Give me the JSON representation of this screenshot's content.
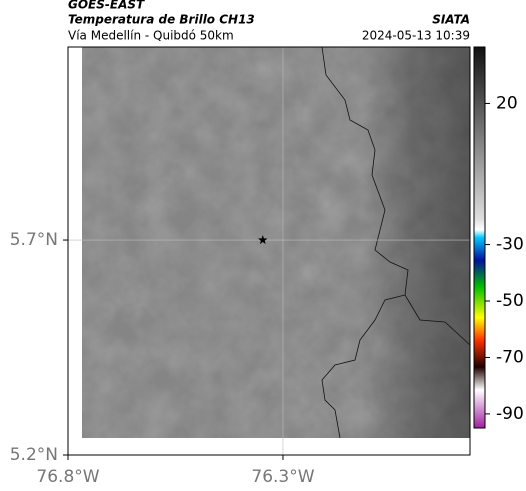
{
  "chart_data": {
    "type": "map",
    "title": "GOES-EAST",
    "subtitle": "Temperatura de Brillo CH13",
    "source": "SIATA",
    "region": "Vía Medellín - Quibdó 50km",
    "timestamp": "2024-05-13 10:39",
    "xlim": [
      -76.8,
      -75.865
    ],
    "ylim": [
      5.2,
      6.149
    ],
    "xticks": [
      {
        "value": -76.8,
        "label": "76.8°W"
      },
      {
        "value": -76.3,
        "label": "76.3°W"
      }
    ],
    "yticks": [
      {
        "value": 5.2,
        "label": "5.2°N"
      },
      {
        "value": 5.7,
        "label": "5.7°N"
      }
    ],
    "grid": true,
    "marker": {
      "lon": -76.347,
      "lat": 5.7
    },
    "colorbar": {
      "clim": [
        -95,
        40
      ],
      "ticks": [
        20,
        -30,
        -50,
        -70,
        -90
      ]
    }
  }
}
